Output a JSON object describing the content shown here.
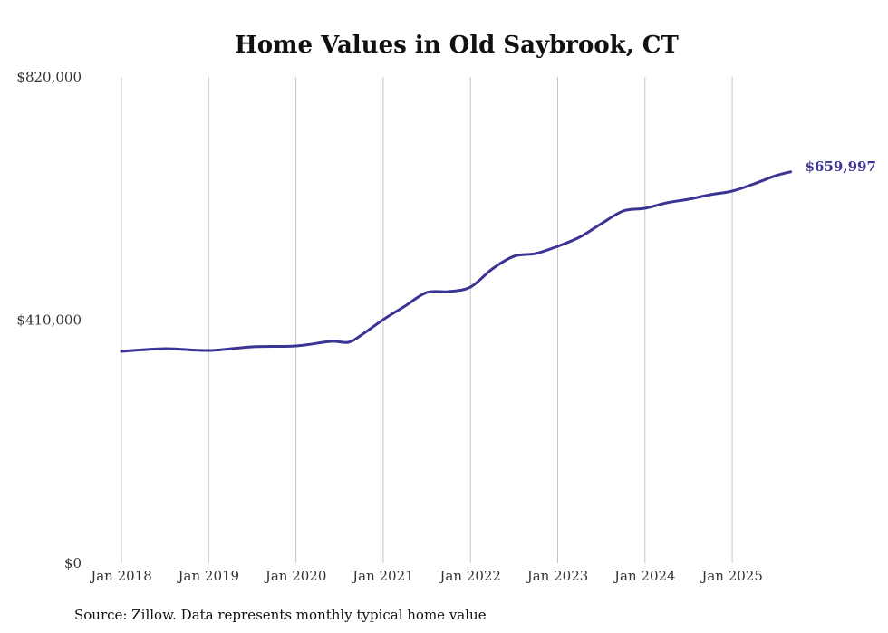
{
  "chart_data": {
    "type": "line",
    "title": "Home Values in Old Saybrook, CT",
    "source": "Source: Zillow. Data represents monthly typical home value",
    "xlabel": "",
    "ylabel": "",
    "ylim": [
      0,
      820000
    ],
    "xlim": [
      2018.0,
      2025.67
    ],
    "y_ticks": [
      {
        "value": 0,
        "label": "$0"
      },
      {
        "value": 410000,
        "label": "$410,000"
      },
      {
        "value": 820000,
        "label": "$820,000"
      }
    ],
    "x_ticks": [
      {
        "value": 2018,
        "label": "Jan 2018"
      },
      {
        "value": 2019,
        "label": "Jan 2019"
      },
      {
        "value": 2020,
        "label": "Jan 2020"
      },
      {
        "value": 2021,
        "label": "Jan 2021"
      },
      {
        "value": 2022,
        "label": "Jan 2022"
      },
      {
        "value": 2023,
        "label": "Jan 2023"
      },
      {
        "value": 2024,
        "label": "Jan 2024"
      },
      {
        "value": 2025,
        "label": "Jan 2025"
      }
    ],
    "grid": "vertical",
    "line_color": "#3b3494",
    "end_label": "$659,997",
    "series": [
      {
        "name": "Typical home value",
        "x": [
          2018.0,
          2018.5,
          2019.0,
          2019.5,
          2020.0,
          2020.4,
          2020.6,
          2020.75,
          2021.0,
          2021.25,
          2021.5,
          2021.75,
          2022.0,
          2022.25,
          2022.5,
          2022.75,
          2023.0,
          2023.25,
          2023.5,
          2023.75,
          2024.0,
          2024.25,
          2024.5,
          2024.75,
          2025.0,
          2025.25,
          2025.5,
          2025.67
        ],
        "values": [
          357300,
          361900,
          358800,
          365000,
          366500,
          374100,
          372600,
          384800,
          410800,
          433700,
          456600,
          458100,
          465700,
          496300,
          517700,
          522300,
          534500,
          549800,
          572600,
          594000,
          598600,
          607800,
          613900,
          621500,
          627600,
          639800,
          653600,
          659997
        ]
      }
    ]
  }
}
